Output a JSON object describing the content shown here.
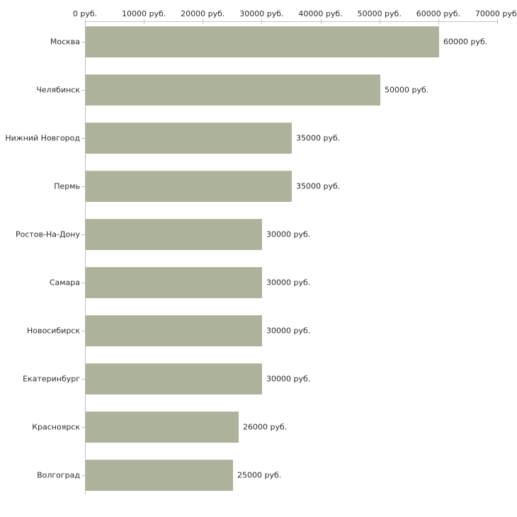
{
  "chart_data": {
    "type": "bar",
    "orientation": "horizontal",
    "categories": [
      "Москва",
      "Челябинск",
      "Нижний Новгород",
      "Пермь",
      "Ростов-На-Дону",
      "Самара",
      "Новосибирск",
      "Екатеринбург",
      "Красноярск",
      "Волгоград"
    ],
    "values": [
      60000,
      50000,
      35000,
      35000,
      30000,
      30000,
      30000,
      30000,
      26000,
      25000
    ],
    "value_labels": [
      "60000 руб.",
      "50000 руб.",
      "35000 руб.",
      "35000 руб.",
      "30000 руб.",
      "30000 руб.",
      "30000 руб.",
      "30000 руб.",
      "26000 руб.",
      "25000 руб."
    ],
    "x_axis": {
      "position": "top",
      "tick_values": [
        0,
        10000,
        20000,
        30000,
        40000,
        50000,
        60000,
        70000
      ],
      "tick_labels": [
        "0 руб.",
        "10000 руб.",
        "20000 руб.",
        "30000 руб.",
        "40000 руб.",
        "50000 руб.",
        "60000 руб.",
        "70000 руб."
      ],
      "xlim": [
        0,
        70000
      ]
    },
    "title": "",
    "xlabel": "",
    "ylabel": "",
    "grid": false,
    "legend": false,
    "colors": {
      "bar_fill": "#acb39a",
      "bar_edge": "#bcc2ab",
      "axis_line": "#c6c6c6",
      "tick_mark": "#c6c69a",
      "text": "#2b2b2b",
      "background": "#ffffff"
    }
  }
}
